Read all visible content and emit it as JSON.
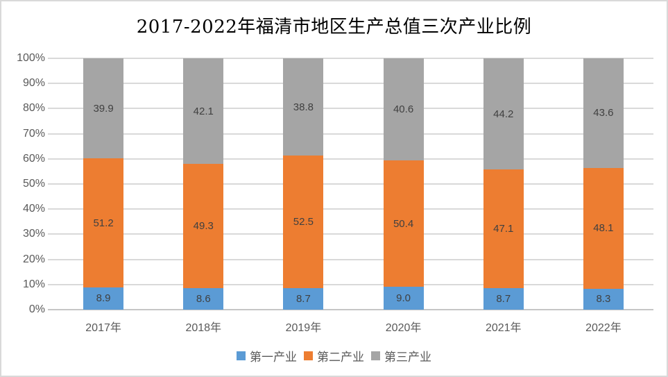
{
  "title": "2017-2022年福清市地区生产总值三次产业比例",
  "colors": {
    "series1_blue": "#5B9BD5",
    "series2_orange": "#ED7D31",
    "series3_gray": "#A5A5A5",
    "gridline": "#D9D9D9",
    "axis_text": "#595959",
    "data_label_text": "#404040",
    "title_text": "#000000",
    "frame_border": "#D9D9D9",
    "background": "#FFFFFF"
  },
  "chart_data": {
    "type": "bar",
    "stacked": true,
    "title": "2017-2022年福清市地区生产总值三次产业比例",
    "categories": [
      "2017年",
      "2018年",
      "2019年",
      "2020年",
      "2021年",
      "2022年"
    ],
    "series": [
      {
        "name": "第一产业",
        "color": "#5B9BD5",
        "values": [
          8.9,
          8.6,
          8.7,
          9.0,
          8.7,
          8.3
        ]
      },
      {
        "name": "第二产业",
        "color": "#ED7D31",
        "values": [
          51.2,
          49.3,
          52.5,
          50.4,
          47.1,
          48.1
        ]
      },
      {
        "name": "第三产业",
        "color": "#A5A5A5",
        "values": [
          39.9,
          42.1,
          38.8,
          40.6,
          44.2,
          43.6
        ]
      }
    ],
    "xlabel": "",
    "ylabel": "",
    "ylim": [
      0,
      100
    ],
    "y_tick_step": 10,
    "y_tick_labels": [
      "0%",
      "10%",
      "20%",
      "30%",
      "40%",
      "50%",
      "60%",
      "70%",
      "80%",
      "90%",
      "100%"
    ],
    "grid": true,
    "data_labels": true,
    "data_label_decimals": 1,
    "legend_position": "bottom"
  }
}
